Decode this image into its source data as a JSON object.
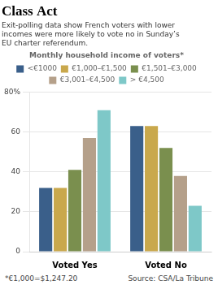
{
  "chart_data": {
    "type": "bar",
    "title": "Class Act",
    "subtitle": "Exit-polling data show French voters with lower\nincomes were more likely to vote no in Sunday’s\nEU charter referendum.",
    "legend_title": "Monthly household income of voters*",
    "categories": [
      "Voted Yes",
      "Voted No"
    ],
    "series": [
      {
        "name": "<€1000",
        "color": "#3a5f8a",
        "values": [
          32,
          63
        ]
      },
      {
        "name": "€1,000–€1,500",
        "color": "#c9a84c",
        "values": [
          32,
          63
        ]
      },
      {
        "name": "€1,501–€3,000",
        "color": "#7a8f4e",
        "values": [
          41,
          52
        ]
      },
      {
        "name": "€3,001–€4,500",
        "color": "#b5a08a",
        "values": [
          57,
          38
        ]
      },
      {
        "name": "> €4,500",
        "color": "#7ec8c8",
        "values": [
          71,
          23
        ]
      }
    ],
    "ylim": [
      0,
      80
    ],
    "yticks": [
      0,
      20,
      40,
      60,
      {
        "value": 80,
        "label": "80%"
      }
    ],
    "grid": true,
    "legend": "top",
    "annotations": [
      "*€1,000=$1,247.20",
      "Source: CSA/La Tribune"
    ]
  }
}
